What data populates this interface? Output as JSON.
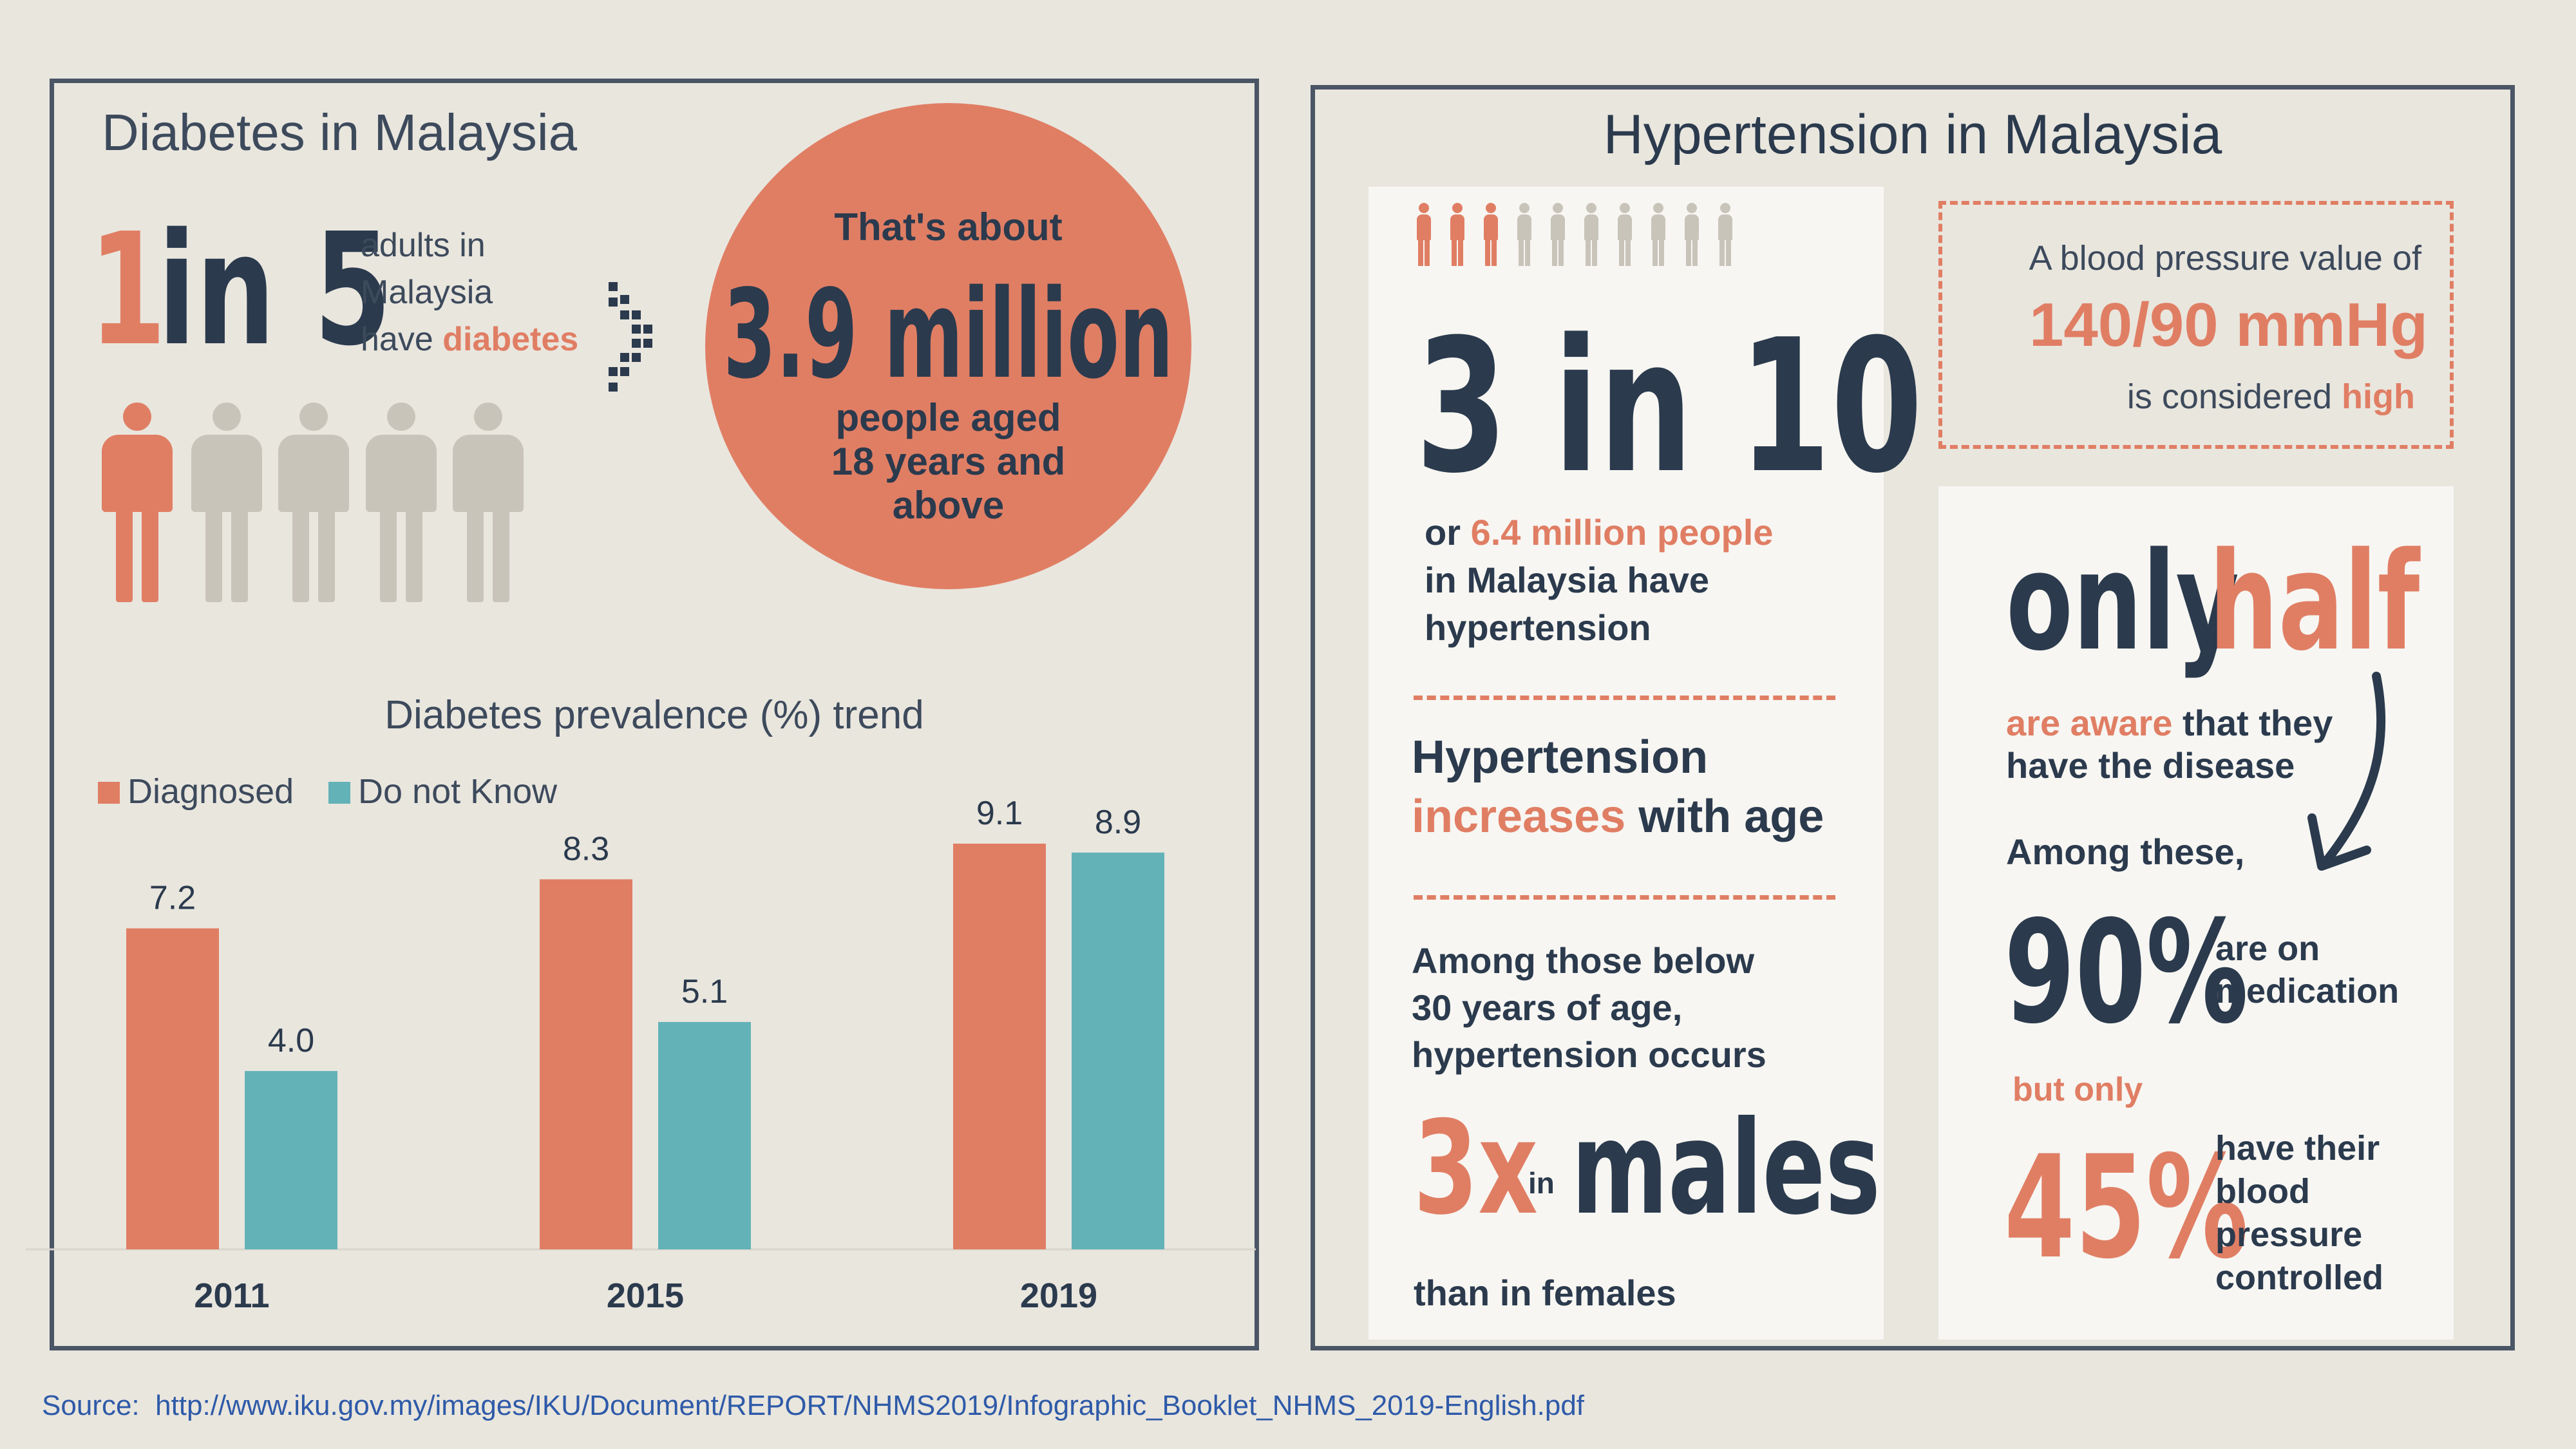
{
  "diabetes": {
    "title": "Diabetes in Malaysia",
    "ratio_one": "1",
    "ratio_rest": "in 5",
    "desc_line1": "adults in",
    "desc_line2": "Malaysia",
    "desc_line3_prefix": "have ",
    "desc_line3_highlight": "diabetes",
    "people_highlighted": 1,
    "people_total": 5,
    "circle_line1": "That's about",
    "circle_big": "3.9 million",
    "circle_line2": "people aged",
    "circle_line3": "18 years and",
    "circle_line4": "above"
  },
  "chart_data": {
    "type": "bar",
    "title": "Diabetes prevalence (%) trend",
    "categories": [
      "2011",
      "2015",
      "2019"
    ],
    "series": [
      {
        "name": "Diagnosed",
        "values": [
          7.2,
          8.3,
          9.1
        ],
        "value_labels": [
          "7.2",
          "8.3",
          "9.1"
        ],
        "color": "#e07e64"
      },
      {
        "name": "Do not Know",
        "values": [
          4.0,
          5.1,
          8.9
        ],
        "value_labels": [
          "4.0",
          "5.1",
          "8.9"
        ],
        "color": "#63b2b8"
      }
    ],
    "ylim": [
      0,
      10
    ],
    "grid": false,
    "legend": "top-left"
  },
  "hypertension": {
    "title": "Hypertension in Malaysia",
    "people_highlighted": 3,
    "people_total": 10,
    "ratio": "3 in 10",
    "or_prefix": "or ",
    "or_highlight": "6.4 million people",
    "line2": "in Malaysia have",
    "line3": "hypertension",
    "age_title": "Hypertension",
    "age_highlight": "increases",
    "age_rest": " with age",
    "below_line1": "Among those below",
    "below_line2": "30 years of age,",
    "below_line3": "hypertension occurs",
    "big_3x": "3x",
    "in_word": "in",
    "males": "males",
    "than_females": "than in females",
    "bp_line1": "A blood pressure value of",
    "bp_value": "140/90 mmHg",
    "bp_line3_prefix": "is considered ",
    "bp_line3_highlight": "high",
    "only": "only",
    "half": "half",
    "aware_highlight": "are aware",
    "aware_rest": " that they",
    "aware_line2": "have the disease",
    "among_these": "Among these,",
    "pct90": "90%",
    "med_line1": "are on",
    "med_line2": "medication",
    "but_only": "but only",
    "pct45": "45%",
    "ctrl_line1": "have their",
    "ctrl_line2": "blood",
    "ctrl_line3": "pressure",
    "ctrl_line4": "controlled"
  },
  "source": {
    "label": "Source:",
    "url": "http://www.iku.gov.my/images/IKU/Document/REPORT/NHMS2019/Infographic_Booklet_NHMS_2019-English.pdf"
  },
  "colors": {
    "orange": "#e07e64",
    "teal": "#63b2b8",
    "navy": "#2b3a4d",
    "grey_person": "#c9c4ba",
    "background": "#e9e6de",
    "source_blue": "#2e5aa8"
  }
}
